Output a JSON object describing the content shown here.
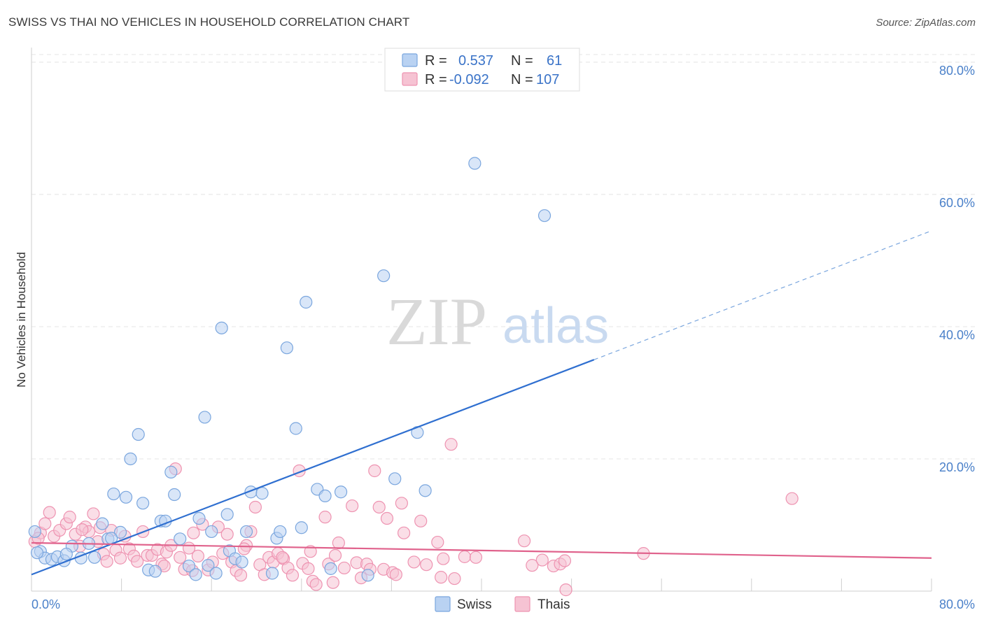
{
  "title": "SWISS VS THAI NO VEHICLES IN HOUSEHOLD CORRELATION CHART",
  "source": "Source: ZipAtlas.com",
  "watermark": {
    "zip": "ZIP",
    "atlas": "atlas"
  },
  "legend": {
    "swiss": {
      "r_label": "R =",
      "r_value": "0.537",
      "n_label": "N =",
      "n_value": "61"
    },
    "thais": {
      "r_label": "R =",
      "r_value": "-0.092",
      "n_label": "N =",
      "n_value": "107"
    }
  },
  "bottom_legend": {
    "swiss": "Swiss",
    "thais": "Thais"
  },
  "colors": {
    "swiss_fill": "#b9d2f2",
    "swiss_stroke": "#7aa6de",
    "swiss_line": "#2f6fd0",
    "thais_fill": "#f6c3d3",
    "thais_stroke": "#ee93b1",
    "thais_line": "#e0628c",
    "tick_text": "#4a80c9",
    "grid": "#e4e4e4"
  },
  "chart_data": {
    "type": "scatter",
    "title": "SWISS VS THAI NO VEHICLES IN HOUSEHOLD CORRELATION CHART",
    "xlabel": "",
    "ylabel": "No Vehicles in Household",
    "xlim": [
      0,
      80
    ],
    "ylim": [
      0,
      82
    ],
    "x_tick_labels": [
      "0.0%",
      "80.0%"
    ],
    "y_ticks": [
      20,
      40,
      60,
      80
    ],
    "y_tick_labels": [
      "20.0%",
      "40.0%",
      "60.0%",
      "80.0%"
    ],
    "grid": true,
    "legend_position": "top-center",
    "series": [
      {
        "name": "Swiss",
        "r": 0.537,
        "n": 61,
        "trend": {
          "x0": 0,
          "y0": 2.5,
          "x1": 50,
          "y1": 35.0,
          "dashed_to_x": 80,
          "dashed_to_y": 54.5
        },
        "points": [
          [
            0.3,
            9.0
          ],
          [
            0.8,
            6.0
          ],
          [
            1.2,
            5.0
          ],
          [
            1.8,
            4.8
          ],
          [
            2.3,
            5.2
          ],
          [
            2.9,
            4.6
          ],
          [
            3.6,
            6.8
          ],
          [
            4.4,
            5.0
          ],
          [
            5.1,
            7.2
          ],
          [
            5.6,
            5.1
          ],
          [
            6.3,
            10.2
          ],
          [
            6.8,
            7.9
          ],
          [
            7.3,
            14.7
          ],
          [
            7.9,
            8.9
          ],
          [
            8.4,
            14.2
          ],
          [
            8.8,
            20.0
          ],
          [
            9.5,
            23.7
          ],
          [
            9.9,
            13.3
          ],
          [
            10.4,
            3.2
          ],
          [
            11.0,
            3.0
          ],
          [
            11.5,
            10.6
          ],
          [
            11.9,
            10.6
          ],
          [
            12.4,
            18.0
          ],
          [
            12.7,
            14.6
          ],
          [
            13.2,
            7.9
          ],
          [
            14.0,
            3.8
          ],
          [
            14.6,
            2.5
          ],
          [
            14.9,
            11.0
          ],
          [
            15.4,
            26.3
          ],
          [
            15.7,
            3.9
          ],
          [
            16.0,
            9.0
          ],
          [
            16.4,
            2.7
          ],
          [
            16.9,
            39.8
          ],
          [
            17.4,
            11.6
          ],
          [
            17.6,
            6.1
          ],
          [
            18.1,
            4.9
          ],
          [
            18.7,
            4.4
          ],
          [
            19.1,
            9.0
          ],
          [
            19.5,
            15.0
          ],
          [
            20.5,
            14.8
          ],
          [
            21.4,
            2.7
          ],
          [
            21.8,
            8.0
          ],
          [
            22.1,
            9.0
          ],
          [
            22.7,
            36.8
          ],
          [
            23.5,
            24.6
          ],
          [
            24.0,
            9.6
          ],
          [
            24.4,
            43.7
          ],
          [
            25.4,
            15.4
          ],
          [
            26.1,
            14.4
          ],
          [
            26.6,
            3.4
          ],
          [
            27.5,
            15.0
          ],
          [
            29.9,
            2.4
          ],
          [
            31.3,
            47.7
          ],
          [
            32.3,
            17.0
          ],
          [
            34.3,
            24.0
          ],
          [
            35.0,
            15.2
          ],
          [
            39.4,
            64.7
          ],
          [
            45.6,
            56.8
          ],
          [
            0.5,
            5.8
          ],
          [
            3.1,
            5.6
          ],
          [
            7.1,
            8.0
          ]
        ]
      },
      {
        "name": "Thais",
        "r": -0.092,
        "n": 107,
        "trend": {
          "x0": 0,
          "y0": 7.3,
          "x1": 80,
          "y1": 5.0
        },
        "points": [
          [
            0.3,
            7.5
          ],
          [
            0.8,
            8.8
          ],
          [
            1.2,
            10.2
          ],
          [
            1.6,
            11.9
          ],
          [
            2.0,
            8.3
          ],
          [
            2.5,
            9.2
          ],
          [
            3.1,
            10.2
          ],
          [
            3.4,
            11.2
          ],
          [
            3.9,
            8.6
          ],
          [
            4.3,
            6.8
          ],
          [
            4.8,
            9.7
          ],
          [
            5.1,
            9.0
          ],
          [
            5.5,
            11.7
          ],
          [
            5.9,
            7.5
          ],
          [
            6.4,
            5.6
          ],
          [
            6.7,
            4.5
          ],
          [
            7.1,
            9.2
          ],
          [
            7.5,
            6.2
          ],
          [
            7.9,
            5.0
          ],
          [
            8.3,
            8.3
          ],
          [
            8.7,
            6.4
          ],
          [
            9.1,
            5.3
          ],
          [
            9.4,
            4.5
          ],
          [
            9.9,
            9.0
          ],
          [
            10.3,
            5.4
          ],
          [
            10.7,
            5.4
          ],
          [
            11.2,
            6.3
          ],
          [
            11.6,
            4.1
          ],
          [
            12.0,
            5.9
          ],
          [
            12.4,
            6.9
          ],
          [
            12.8,
            18.5
          ],
          [
            13.2,
            5.1
          ],
          [
            13.6,
            3.3
          ],
          [
            14.0,
            6.5
          ],
          [
            14.4,
            8.8
          ],
          [
            14.8,
            5.3
          ],
          [
            15.2,
            10.1
          ],
          [
            15.7,
            3.2
          ],
          [
            16.1,
            4.4
          ],
          [
            16.6,
            9.7
          ],
          [
            17.0,
            5.7
          ],
          [
            17.4,
            8.6
          ],
          [
            17.8,
            4.4
          ],
          [
            18.2,
            3.1
          ],
          [
            18.6,
            2.4
          ],
          [
            19.1,
            6.9
          ],
          [
            19.5,
            9.0
          ],
          [
            19.9,
            12.7
          ],
          [
            20.3,
            4.0
          ],
          [
            20.7,
            2.5
          ],
          [
            21.1,
            5.1
          ],
          [
            21.5,
            4.4
          ],
          [
            21.9,
            5.7
          ],
          [
            22.4,
            4.9
          ],
          [
            22.8,
            3.5
          ],
          [
            23.2,
            2.4
          ],
          [
            23.8,
            18.2
          ],
          [
            24.1,
            4.2
          ],
          [
            24.6,
            3.4
          ],
          [
            25.0,
            1.5
          ],
          [
            25.3,
            1.0
          ],
          [
            26.1,
            11.2
          ],
          [
            26.4,
            4.1
          ],
          [
            26.8,
            1.3
          ],
          [
            27.3,
            7.3
          ],
          [
            27.8,
            3.5
          ],
          [
            28.5,
            12.9
          ],
          [
            28.9,
            4.3
          ],
          [
            29.3,
            2.0
          ],
          [
            29.8,
            4.1
          ],
          [
            30.5,
            18.2
          ],
          [
            30.9,
            12.7
          ],
          [
            31.3,
            3.3
          ],
          [
            31.6,
            11.0
          ],
          [
            32.1,
            2.8
          ],
          [
            32.4,
            2.5
          ],
          [
            32.9,
            13.3
          ],
          [
            33.1,
            8.8
          ],
          [
            34.6,
            10.6
          ],
          [
            35.1,
            4.0
          ],
          [
            36.1,
            7.4
          ],
          [
            36.4,
            2.1
          ],
          [
            36.6,
            4.9
          ],
          [
            37.3,
            22.2
          ],
          [
            37.6,
            1.9
          ],
          [
            38.5,
            5.2
          ],
          [
            39.5,
            5.1
          ],
          [
            43.8,
            7.6
          ],
          [
            45.4,
            4.7
          ],
          [
            46.4,
            3.8
          ],
          [
            47.0,
            4.1
          ],
          [
            47.4,
            4.6
          ],
          [
            47.5,
            0.2
          ],
          [
            54.4,
            5.7
          ],
          [
            67.6,
            14.0
          ],
          [
            0.6,
            8.0
          ],
          [
            4.5,
            9.3
          ],
          [
            6.1,
            9.6
          ],
          [
            11.8,
            3.8
          ],
          [
            14.3,
            3.1
          ],
          [
            18.9,
            6.4
          ],
          [
            22.3,
            5.1
          ],
          [
            24.8,
            6.0
          ],
          [
            27.0,
            5.4
          ],
          [
            30.1,
            3.3
          ],
          [
            34.0,
            4.4
          ],
          [
            44.5,
            3.9
          ]
        ]
      }
    ]
  }
}
